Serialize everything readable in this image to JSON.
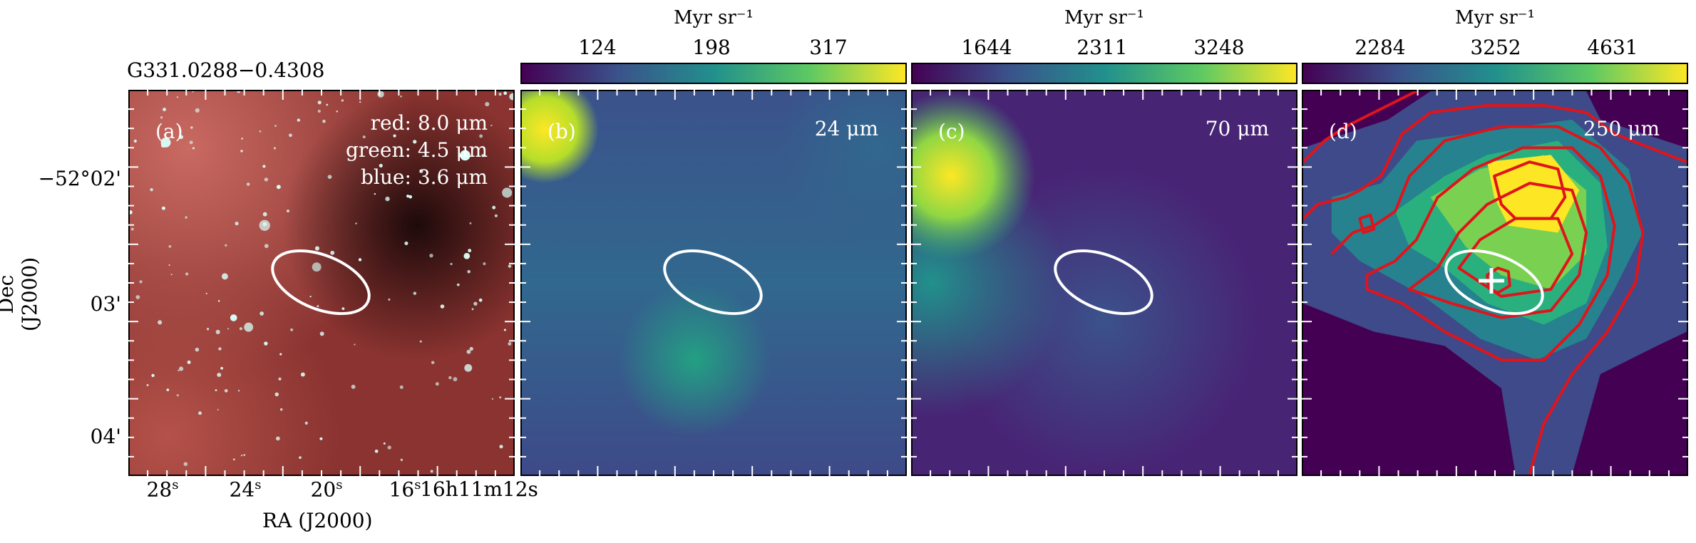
{
  "source_name": "G331.0288−0.4308",
  "axes": {
    "xlabel": "RA (J2000)",
    "ylabel": "Dec (J2000)",
    "yticks": [
      "−52°02'",
      "03'",
      "04'"
    ],
    "xticks": [
      {
        "main": "28",
        "sup": "s"
      },
      {
        "main": "24",
        "sup": "s"
      },
      {
        "main": "20",
        "sup": "s"
      },
      {
        "main": "16",
        "sup": "s"
      },
      {
        "main": "16h11m12s",
        "sup": ""
      }
    ]
  },
  "panels": [
    {
      "label": "(a)",
      "rgb": [
        "red: 8.0 μm",
        "green: 4.5 μm",
        "blue: 3.6 μm"
      ]
    },
    {
      "label": "(b)",
      "wavelength": "24 μm",
      "colorbar": {
        "unit": "Myr sr⁻¹",
        "ticks": [
          "124",
          "198",
          "317"
        ]
      }
    },
    {
      "label": "(c)",
      "wavelength": "70 μm",
      "colorbar": {
        "unit": "Myr sr⁻¹",
        "ticks": [
          "1644",
          "2311",
          "3248"
        ]
      }
    },
    {
      "label": "(d)",
      "wavelength": "250 μm",
      "colorbar": {
        "unit": "Myr sr⁻¹",
        "ticks": [
          "2284",
          "3252",
          "4631"
        ]
      }
    }
  ],
  "colors": {
    "ellipse": "#ffffff",
    "contours": "#e0141b",
    "viridis": [
      "#440154",
      "#3b528b",
      "#21908d",
      "#5dc963",
      "#fde725"
    ]
  }
}
